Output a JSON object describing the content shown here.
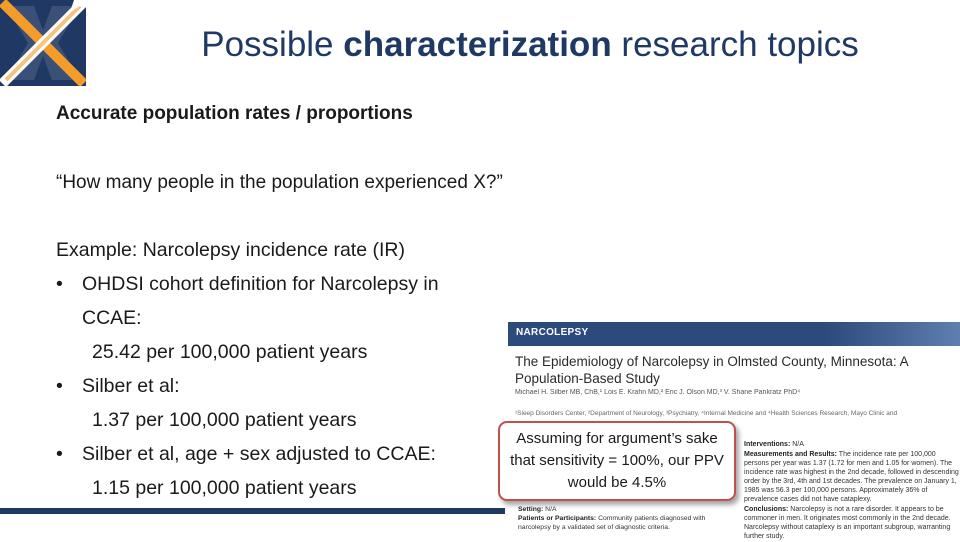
{
  "slide": {
    "title_part1": "Possible ",
    "title_bold": "characterization",
    "title_part2": " research topics",
    "heading": "Accurate population rates / proportions",
    "question": "“How many people in the population experienced X?”",
    "example_line": "Example: Narcolepsy incidence rate (IR)",
    "bullets": [
      {
        "symbol": "•",
        "text": "OHDSI cohort definition for Narcolepsy in",
        "text_cont": "CCAE:",
        "value": "25.42 per 100,000 patient years"
      },
      {
        "symbol": "•",
        "text": "Silber et al:",
        "value": "1.37 per 100,000 patient years"
      },
      {
        "symbol": "•",
        "text": "Silber et al, age + sex adjusted to CCAE:",
        "value": "1.15 per 100,000 patient years"
      }
    ],
    "callout": "Assuming for argument’s sake that sensitivity = 100%, our PPV would be 4.5%",
    "colors": {
      "title": "#1f3864",
      "accent_bar": "#1f3864",
      "callout_border": "#c0504d",
      "logo_orange": "#f39c2a"
    }
  },
  "article": {
    "tag": "NARCOLEPSY",
    "title": "The Epidemiology of Narcolepsy in Olmsted County, Minnesota: A Population-Based Study",
    "authors": "Michael H. Silber MB, ChB,¹ Lois E. Krahn MD,² Eric J. Olson MD,³ V. Shane Pankratz PhD⁴",
    "affiliation": "¹Sleep Disorders Center, ²Department of Neurology, ³Psychiatry, ⁴Internal Medicine and ⁴Health Sciences Research, Mayo Clinic and",
    "right_col": [
      {
        "label": "Interventions:",
        "text": " N/A"
      },
      {
        "label": "Measurements and Results:",
        "text": " The incidence rate per 100,000 persons per year was 1.37 (1.72 for men and 1.05 for women). The incidence rate was highest in the 2nd decade, followed in descending order by the 3rd, 4th and 1st decades. The prevalence on January 1, 1985 was 56.3 per 100,000 persons. Approximately 36% of prevalence cases did not have cataplexy."
      },
      {
        "label": "Conclusions:",
        "text": " Narcolepsy is not a rare disorder. It appears to be commoner in men. It originates most commonly in the 2nd decade. Narcolepsy without cataplexy is an important subgroup, warranting further study."
      }
    ],
    "left_col": [
      {
        "label": "Setting:",
        "text": " N/A"
      },
      {
        "label": "Patients or Participants:",
        "text": " Community patients diagnosed with narcolepsy by a validated set of diagnostic criteria."
      }
    ]
  }
}
